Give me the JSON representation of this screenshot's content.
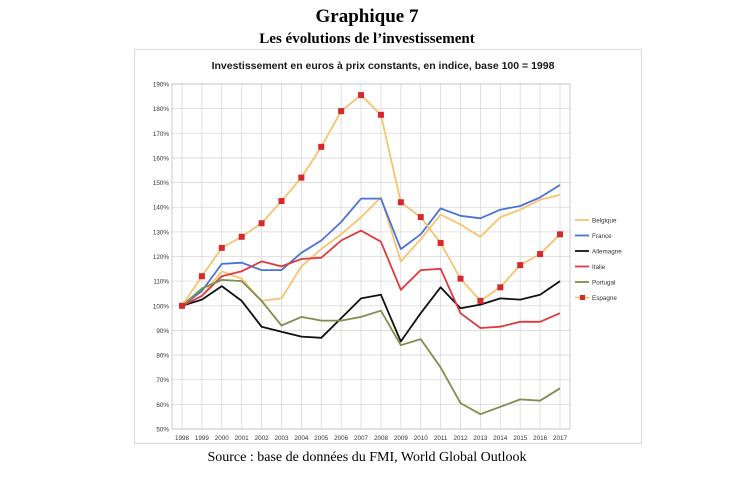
{
  "figure": {
    "title": "Graphique 7",
    "subtitle": "Les évolutions de l’investissement",
    "source": "Source : base de données du FMI, World Global Outlook"
  },
  "chart_data": {
    "type": "line",
    "title": "Investissement en euros à prix constants, en indice, base 100 = 1998",
    "xlabel": "",
    "ylabel": "",
    "x": [
      "1998",
      "1999",
      "2000",
      "2001",
      "2002",
      "2003",
      "2004",
      "2005",
      "2006",
      "2007",
      "2008",
      "2009",
      "2010",
      "2011",
      "2012",
      "2013",
      "2014",
      "2015",
      "2016",
      "2017"
    ],
    "ylim": [
      50,
      190
    ],
    "yticks": [
      50,
      60,
      70,
      80,
      90,
      100,
      110,
      120,
      130,
      140,
      150,
      160,
      170,
      180,
      190
    ],
    "ytick_labels": [
      "50%",
      "60%",
      "70%",
      "80%",
      "90%",
      "100%",
      "110%",
      "120%",
      "130%",
      "140%",
      "150%",
      "160%",
      "170%",
      "180%",
      "190%"
    ],
    "grid": true,
    "legend_position": "right",
    "series": [
      {
        "name": "Belgique",
        "color": "#f6c46e",
        "marker": "none",
        "values": [
          100,
          104,
          114,
          111,
          102,
          103,
          116,
          123,
          129,
          136,
          144,
          118,
          127,
          137,
          133,
          128,
          136,
          139,
          143,
          145
        ]
      },
      {
        "name": "France",
        "color": "#4a72d9",
        "marker": "none",
        "values": [
          100,
          106,
          117,
          117.5,
          114.5,
          114.5,
          121.5,
          126.5,
          134,
          143.5,
          143.5,
          123,
          129,
          139.5,
          136.5,
          135.5,
          139,
          140.5,
          144,
          149
        ]
      },
      {
        "name": "Allemagne",
        "color": "#111111",
        "marker": "none",
        "values": [
          100,
          102.5,
          108,
          102,
          91.5,
          89.5,
          87.5,
          87,
          95,
          103,
          104.5,
          85.5,
          97,
          107.5,
          99,
          100.5,
          103,
          102.5,
          104.5,
          110
        ]
      },
      {
        "name": "Italie",
        "color": "#e0393e",
        "marker": "none",
        "values": [
          100,
          104,
          112,
          114,
          118,
          116,
          119,
          119.5,
          126.5,
          130.5,
          126,
          106.5,
          114.5,
          115,
          97,
          91,
          91.5,
          93.5,
          93.5,
          97
        ]
      },
      {
        "name": "Portugal",
        "color": "#7d8f4c",
        "marker": "none",
        "values": [
          100,
          107,
          110.5,
          110,
          102,
          92,
          95.5,
          94,
          94,
          95.5,
          98,
          84,
          86.5,
          75,
          60.5,
          56,
          59,
          62,
          61.5,
          66.5
        ]
      },
      {
        "name": "Espagne",
        "color": "#f6c46e",
        "marker": "square",
        "marker_color": "#d8282d",
        "values": [
          100,
          112,
          123.5,
          128,
          133.5,
          142.5,
          152,
          164.5,
          179,
          185.5,
          177.5,
          142,
          136,
          125.5,
          111,
          102,
          107.5,
          116.5,
          121,
          129
        ]
      }
    ]
  }
}
